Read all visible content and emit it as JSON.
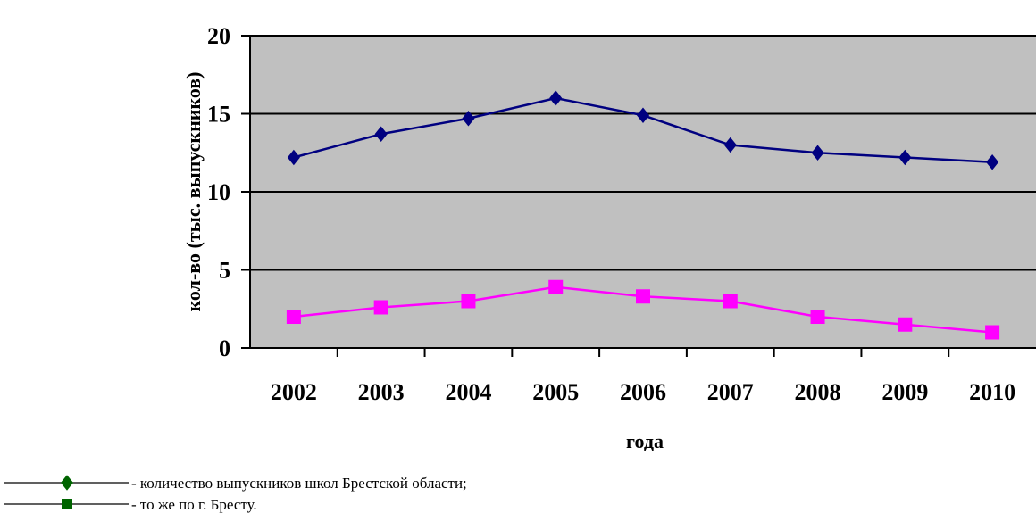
{
  "chart_data": {
    "type": "line",
    "title": "",
    "xlabel": "года",
    "ylabel": "кол-во (тыс. выпускников)",
    "categories": [
      "2002",
      "2003",
      "2004",
      "2005",
      "2006",
      "2007",
      "2008",
      "2009",
      "2010"
    ],
    "ylim": [
      0,
      20
    ],
    "yticks": [
      0,
      5,
      10,
      15,
      20
    ],
    "grid": true,
    "plot_background": "#c0c0c0",
    "series": [
      {
        "marker": "diamond",
        "color": "#000080",
        "values": [
          12.2,
          13.7,
          14.7,
          16.0,
          14.9,
          13.0,
          12.5,
          12.2,
          11.9
        ]
      },
      {
        "marker": "square",
        "color": "#ff00ff",
        "values": [
          2.0,
          2.6,
          3.0,
          3.9,
          3.3,
          3.0,
          2.0,
          1.5,
          1.0
        ]
      }
    ],
    "legend": {
      "placement": "bottom-left",
      "entries": [
        {
          "text": "- количество выпускников школ Брестской области;",
          "marker": "diamond",
          "color": "#006400"
        },
        {
          "text": "- то же по г. Бресту.",
          "marker": "square",
          "color": "#006400"
        }
      ]
    }
  }
}
